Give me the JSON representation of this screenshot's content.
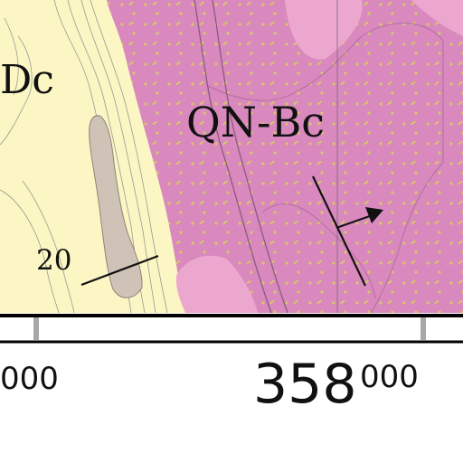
{
  "map": {
    "unit_labels": {
      "left_unit_fragment": "Dc",
      "main_unit": "QN-Bc"
    },
    "dip_value": "20",
    "grid": {
      "left_easting_fragment": "000",
      "easting_major": "358",
      "easting_minor": "000"
    },
    "colors": {
      "alluvium": "#fbf6c4",
      "bedrock_pink": "#d989bd",
      "pink_light": "#eca7cf",
      "dots": "#d9c56a",
      "grey_unit": "#cfc2b6",
      "contour": "#9a9a8e"
    },
    "symbols": [
      "strike-dip-symbol",
      "foliation-arrow-symbol"
    ]
  }
}
